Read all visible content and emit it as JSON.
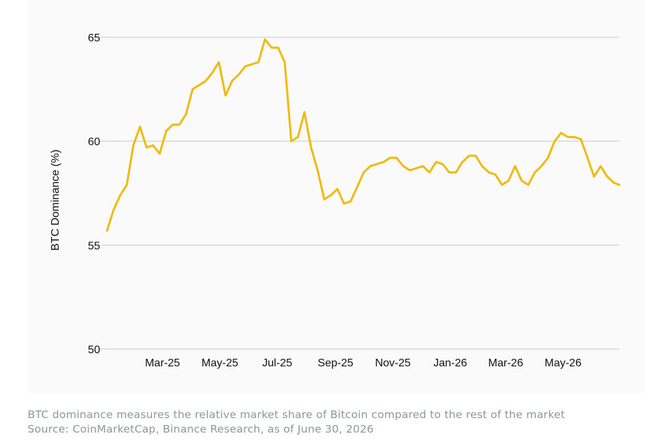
{
  "chart_data": {
    "type": "line",
    "title": "",
    "xlabel": "",
    "ylabel": "BTC Dominance (%)",
    "ylim": [
      50,
      65
    ],
    "yticks": [
      50,
      55,
      60,
      65
    ],
    "xticks": [
      "Mar-25",
      "May-25",
      "Jul-25",
      "Sep-25",
      "Nov-25",
      "Jan-26",
      "Mar-26",
      "May-26"
    ],
    "grid": "horizontal",
    "line_color": "#f0b90b",
    "series": [
      {
        "x": [
          "2025-01-01",
          "2025-01-08",
          "2025-01-15",
          "2025-01-22",
          "2025-01-29",
          "2025-02-05",
          "2025-02-12",
          "2025-02-19",
          "2025-02-26",
          "2025-03-05",
          "2025-03-12",
          "2025-03-19",
          "2025-03-26",
          "2025-04-02",
          "2025-04-09",
          "2025-04-16",
          "2025-04-23",
          "2025-04-30",
          "2025-05-07",
          "2025-05-14",
          "2025-05-21",
          "2025-05-28",
          "2025-06-04",
          "2025-06-11",
          "2025-06-18",
          "2025-06-25",
          "2025-07-02",
          "2025-07-09",
          "2025-07-16",
          "2025-07-23",
          "2025-07-30",
          "2025-08-06",
          "2025-08-13",
          "2025-08-20",
          "2025-08-27",
          "2025-09-03",
          "2025-09-10",
          "2025-09-17",
          "2025-09-24",
          "2025-10-01",
          "2025-10-08",
          "2025-10-15",
          "2025-10-22",
          "2025-10-29",
          "2025-11-05",
          "2025-11-12",
          "2025-11-19",
          "2025-11-26",
          "2025-12-03",
          "2025-12-10",
          "2025-12-17",
          "2025-12-24",
          "2025-12-31",
          "2026-01-07",
          "2026-01-14",
          "2026-01-21",
          "2026-01-28",
          "2026-02-04",
          "2026-02-11",
          "2026-02-18",
          "2026-02-25",
          "2026-03-04",
          "2026-03-11",
          "2026-03-18",
          "2026-03-25",
          "2026-04-01",
          "2026-04-08",
          "2026-04-15",
          "2026-04-22",
          "2026-04-29",
          "2026-05-06",
          "2026-05-13",
          "2026-05-20",
          "2026-05-27",
          "2026-06-03",
          "2026-06-10",
          "2026-06-17",
          "2026-06-24",
          "2026-06-30"
        ],
        "values": [
          55.7,
          56.7,
          57.4,
          57.9,
          59.8,
          60.7,
          59.7,
          59.8,
          59.4,
          60.5,
          60.8,
          60.8,
          61.3,
          62.5,
          62.7,
          62.9,
          63.3,
          63.8,
          62.2,
          62.9,
          63.2,
          63.6,
          63.7,
          63.8,
          64.9,
          64.5,
          64.5,
          63.8,
          60.0,
          60.2,
          61.4,
          59.7,
          58.6,
          57.2,
          57.4,
          57.7,
          57.0,
          57.1,
          57.8,
          58.5,
          58.8,
          58.9,
          59.0,
          59.2,
          59.2,
          58.8,
          58.6,
          58.7,
          58.8,
          58.5,
          59.0,
          58.9,
          58.5,
          58.5,
          59.0,
          59.3,
          59.3,
          58.8,
          58.5,
          58.4,
          57.9,
          58.1,
          58.8,
          58.1,
          57.9,
          58.5,
          58.8,
          59.2,
          60.0,
          60.4,
          60.2,
          60.2,
          60.1,
          59.2,
          58.3,
          58.8,
          58.3,
          58.0,
          57.9
        ]
      }
    ]
  },
  "caption": {
    "line1": "BTC dominance measures the relative market share of Bitcoin compared to the rest of the market",
    "line2": "Source: CoinMarketCap, Binance Research, as of June 30, 2026"
  }
}
